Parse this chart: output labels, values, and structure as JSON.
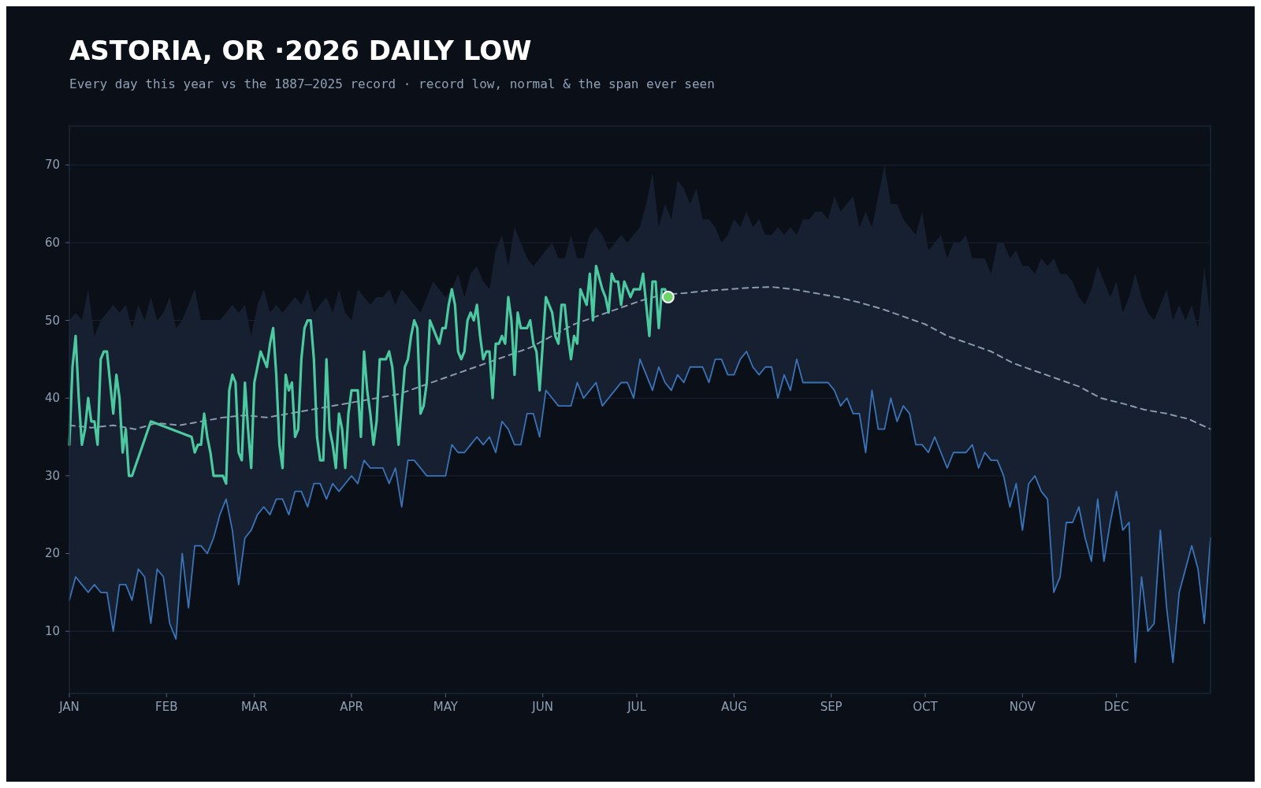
{
  "chart_data": {
    "type": "line",
    "title": "ASTORIA, OR ·2026 DAILY LOW",
    "subtitle": "Every day this year vs the 1887–2025 record · record low, normal & the span ever seen",
    "xlim": [
      "--01-01",
      "--12-31"
    ],
    "ylim": [
      2,
      75
    ],
    "xticks": [
      {
        "value": "--01-01",
        "label": "JAN"
      },
      {
        "value": "--02-01",
        "label": "FEB"
      },
      {
        "value": "--03-01",
        "label": "MAR"
      },
      {
        "value": "--04-01",
        "label": "APR"
      },
      {
        "value": "--05-01",
        "label": "MAY"
      },
      {
        "value": "--06-01",
        "label": "JUN"
      },
      {
        "value": "--07-01",
        "label": "JUL"
      },
      {
        "value": "--08-01",
        "label": "AUG"
      },
      {
        "value": "--09-01",
        "label": "SEP"
      },
      {
        "value": "--10-01",
        "label": "OCT"
      },
      {
        "value": "--11-01",
        "label": "NOV"
      },
      {
        "value": "--12-01",
        "label": "DEC"
      }
    ],
    "yticks": [
      10,
      20,
      30,
      40,
      50,
      60,
      70
    ],
    "grid": "y",
    "series": [
      {
        "type": "area",
        "color": "#172030",
        "x": [
          "--01-01",
          "--01-03",
          "--01-05",
          "--01-07",
          "--01-09",
          "--01-11",
          "--01-13",
          "--01-15",
          "--01-17",
          "--01-19",
          "--01-21",
          "--01-23",
          "--01-25",
          "--01-27",
          "--01-29",
          "--01-31",
          "--02-02",
          "--02-04",
          "--02-06",
          "--02-08",
          "--02-10",
          "--02-12",
          "--02-14",
          "--02-16",
          "--02-18",
          "--02-20",
          "--02-22",
          "--02-24",
          "--02-26",
          "--02-28",
          "--03-02",
          "--03-04",
          "--03-06",
          "--03-08",
          "--03-10",
          "--03-12",
          "--03-14",
          "--03-16",
          "--03-18",
          "--03-20",
          "--03-22",
          "--03-24",
          "--03-26",
          "--03-28",
          "--03-30",
          "--04-01",
          "--04-03",
          "--04-05",
          "--04-07",
          "--04-09",
          "--04-11",
          "--04-13",
          "--04-15",
          "--04-17",
          "--04-19",
          "--04-21",
          "--04-23",
          "--04-25",
          "--04-27",
          "--04-29",
          "--05-01",
          "--05-03",
          "--05-05",
          "--05-07",
          "--05-09",
          "--05-11",
          "--05-13",
          "--05-15",
          "--05-17",
          "--05-19",
          "--05-21",
          "--05-23",
          "--05-25",
          "--05-27",
          "--05-29",
          "--05-31",
          "--06-02",
          "--06-04",
          "--06-06",
          "--06-08",
          "--06-10",
          "--06-12",
          "--06-14",
          "--06-16",
          "--06-18",
          "--06-20",
          "--06-22",
          "--06-24",
          "--06-26",
          "--06-28",
          "--06-30",
          "--07-02",
          "--07-04",
          "--07-06",
          "--07-08",
          "--07-10",
          "--07-12",
          "--07-14",
          "--07-16",
          "--07-18",
          "--07-20",
          "--07-22",
          "--07-24",
          "--07-26",
          "--07-28",
          "--07-30",
          "--08-01",
          "--08-03",
          "--08-05",
          "--08-07",
          "--08-09",
          "--08-11",
          "--08-13",
          "--08-15",
          "--08-17",
          "--08-19",
          "--08-21",
          "--08-23",
          "--08-25",
          "--08-27",
          "--08-29",
          "--08-31",
          "--09-02",
          "--09-04",
          "--09-06",
          "--09-08",
          "--09-10",
          "--09-12",
          "--09-14",
          "--09-16",
          "--09-18",
          "--09-20",
          "--09-22",
          "--09-24",
          "--09-26",
          "--09-28",
          "--09-30",
          "--10-02",
          "--10-04",
          "--10-06",
          "--10-08",
          "--10-10",
          "--10-12",
          "--10-14",
          "--10-16",
          "--10-18",
          "--10-20",
          "--10-22",
          "--10-24",
          "--10-26",
          "--10-28",
          "--10-30",
          "--11-01",
          "--11-03",
          "--11-05",
          "--11-07",
          "--11-09",
          "--11-11",
          "--11-13",
          "--11-15",
          "--11-17",
          "--11-19",
          "--11-21",
          "--11-23",
          "--11-25",
          "--11-27",
          "--11-29",
          "--12-01",
          "--12-03",
          "--12-05",
          "--12-07",
          "--12-09",
          "--12-11",
          "--12-13",
          "--12-15",
          "--12-17",
          "--12-19",
          "--12-21",
          "--12-23",
          "--12-25",
          "--12-27",
          "--12-29",
          "--12-31"
        ],
        "values": [
          50,
          51,
          50,
          54,
          48,
          50,
          51,
          52,
          51,
          52,
          49,
          52,
          50,
          53,
          50,
          51,
          53,
          49,
          50,
          52,
          54,
          50,
          50,
          50,
          50,
          51,
          52,
          51,
          52,
          48,
          52,
          54,
          51,
          52,
          51,
          52,
          53,
          52,
          54,
          51,
          52,
          53,
          51,
          54,
          51,
          50,
          54,
          53,
          52,
          53,
          53,
          54,
          52,
          54,
          53,
          52,
          51,
          53,
          55,
          54,
          53,
          54,
          56,
          53,
          56,
          57,
          55,
          54,
          59,
          61,
          57,
          62,
          60,
          58,
          57,
          58,
          59,
          60,
          58,
          58,
          61,
          58,
          58,
          61,
          62,
          61,
          59,
          60,
          61,
          60,
          61,
          62,
          65,
          69,
          62,
          65,
          63,
          68,
          67,
          65,
          67,
          63,
          63,
          62,
          60,
          61,
          63,
          62,
          64,
          62,
          63,
          61,
          61,
          62,
          61,
          62,
          61,
          63,
          63,
          64,
          64,
          63,
          66,
          64,
          65,
          66,
          62,
          64,
          62,
          66,
          70,
          65,
          65,
          63,
          62,
          61,
          64,
          59,
          60,
          61,
          58,
          60,
          60,
          61,
          58,
          58,
          58,
          56,
          60,
          60,
          58,
          59,
          57,
          57,
          56,
          58,
          57,
          58,
          56,
          56,
          55,
          53,
          52,
          54,
          57,
          55,
          53,
          55,
          51,
          53,
          56,
          53,
          51,
          50,
          52,
          54,
          50,
          52,
          50,
          52,
          49,
          57,
          50
        ]
      },
      {
        "color": "#3a74b8",
        "x": [
          "--01-01",
          "--01-03",
          "--01-05",
          "--01-07",
          "--01-09",
          "--01-11",
          "--01-13",
          "--01-15",
          "--01-17",
          "--01-19",
          "--01-21",
          "--01-23",
          "--01-25",
          "--01-27",
          "--01-29",
          "--01-31",
          "--02-02",
          "--02-04",
          "--02-06",
          "--02-08",
          "--02-10",
          "--02-12",
          "--02-14",
          "--02-16",
          "--02-18",
          "--02-20",
          "--02-22",
          "--02-24",
          "--02-26",
          "--02-28",
          "--03-02",
          "--03-04",
          "--03-06",
          "--03-08",
          "--03-10",
          "--03-12",
          "--03-14",
          "--03-16",
          "--03-18",
          "--03-20",
          "--03-22",
          "--03-24",
          "--03-26",
          "--03-28",
          "--03-30",
          "--04-01",
          "--04-03",
          "--04-05",
          "--04-07",
          "--04-09",
          "--04-11",
          "--04-13",
          "--04-15",
          "--04-17",
          "--04-19",
          "--04-21",
          "--04-23",
          "--04-25",
          "--04-27",
          "--04-29",
          "--05-01",
          "--05-03",
          "--05-05",
          "--05-07",
          "--05-09",
          "--05-11",
          "--05-13",
          "--05-15",
          "--05-17",
          "--05-19",
          "--05-21",
          "--05-23",
          "--05-25",
          "--05-27",
          "--05-29",
          "--05-31",
          "--06-02",
          "--06-04",
          "--06-06",
          "--06-08",
          "--06-10",
          "--06-12",
          "--06-14",
          "--06-16",
          "--06-18",
          "--06-20",
          "--06-22",
          "--06-24",
          "--06-26",
          "--06-28",
          "--06-30",
          "--07-02",
          "--07-04",
          "--07-06",
          "--07-08",
          "--07-10",
          "--07-12",
          "--07-14",
          "--07-16",
          "--07-18",
          "--07-20",
          "--07-22",
          "--07-24",
          "--07-26",
          "--07-28",
          "--07-30",
          "--08-01",
          "--08-03",
          "--08-05",
          "--08-07",
          "--08-09",
          "--08-11",
          "--08-13",
          "--08-15",
          "--08-17",
          "--08-19",
          "--08-21",
          "--08-23",
          "--08-25",
          "--08-27",
          "--08-29",
          "--08-31",
          "--09-02",
          "--09-04",
          "--09-06",
          "--09-08",
          "--09-10",
          "--09-12",
          "--09-14",
          "--09-16",
          "--09-18",
          "--09-20",
          "--09-22",
          "--09-24",
          "--09-26",
          "--09-28",
          "--09-30",
          "--10-02",
          "--10-04",
          "--10-06",
          "--10-08",
          "--10-10",
          "--10-12",
          "--10-14",
          "--10-16",
          "--10-18",
          "--10-20",
          "--10-22",
          "--10-24",
          "--10-26",
          "--10-28",
          "--10-30",
          "--11-01",
          "--11-03",
          "--11-05",
          "--11-07",
          "--11-09",
          "--11-11",
          "--11-13",
          "--11-15",
          "--11-17",
          "--11-19",
          "--11-21",
          "--11-23",
          "--11-25",
          "--11-27",
          "--11-29",
          "--12-01",
          "--12-03",
          "--12-05",
          "--12-07",
          "--12-09",
          "--12-11",
          "--12-13",
          "--12-15",
          "--12-17",
          "--12-19",
          "--12-21",
          "--12-23",
          "--12-25",
          "--12-27",
          "--12-29",
          "--12-31"
        ],
        "values": [
          14,
          17,
          16,
          15,
          16,
          15,
          15,
          10,
          16,
          16,
          14,
          18,
          17,
          11,
          18,
          17,
          11,
          9,
          20,
          13,
          21,
          21,
          20,
          22,
          25,
          27,
          23,
          16,
          22,
          23,
          25,
          26,
          25,
          27,
          27,
          25,
          28,
          28,
          26,
          29,
          29,
          27,
          29,
          28,
          29,
          30,
          29,
          32,
          31,
          31,
          31,
          29,
          31,
          26,
          32,
          32,
          31,
          30,
          30,
          30,
          30,
          34,
          33,
          33,
          34,
          35,
          34,
          35,
          33,
          37,
          36,
          34,
          34,
          38,
          38,
          35,
          41,
          40,
          39,
          39,
          39,
          42,
          40,
          41,
          42,
          39,
          40,
          41,
          42,
          42,
          40,
          45,
          43,
          41,
          44,
          42,
          41,
          43,
          42,
          44,
          44,
          44,
          42,
          45,
          45,
          43,
          43,
          45,
          46,
          44,
          43,
          44,
          44,
          40,
          43,
          41,
          45,
          42,
          42,
          42,
          42,
          42,
          41,
          39,
          40,
          38,
          38,
          33,
          41,
          36,
          36,
          40,
          37,
          39,
          38,
          34,
          34,
          33,
          35,
          33,
          31,
          33,
          33,
          33,
          34,
          31,
          33,
          32,
          32,
          30,
          26,
          29,
          23,
          29,
          30,
          28,
          27,
          15,
          17,
          24,
          24,
          26,
          22,
          19,
          27,
          19,
          24,
          28,
          23,
          24,
          6,
          17,
          10,
          11,
          23,
          13,
          6,
          15,
          18,
          21,
          18,
          11,
          22
        ]
      },
      {
        "color": "#8a9bb0",
        "line_style": "dashed",
        "x": [
          "--01-01",
          "--01-08",
          "--01-15",
          "--01-22",
          "--01-29",
          "--02-05",
          "--02-12",
          "--02-19",
          "--02-26",
          "--03-05",
          "--03-12",
          "--03-19",
          "--03-26",
          "--04-02",
          "--04-09",
          "--04-16",
          "--04-23",
          "--04-30",
          "--05-07",
          "--05-14",
          "--05-21",
          "--05-28",
          "--06-04",
          "--06-11",
          "--06-18",
          "--06-25",
          "--07-02",
          "--07-09",
          "--07-16",
          "--07-23",
          "--07-30",
          "--08-06",
          "--08-13",
          "--08-20",
          "--08-27",
          "--09-03",
          "--09-10",
          "--09-17",
          "--09-24",
          "--10-01",
          "--10-08",
          "--10-15",
          "--10-22",
          "--10-29",
          "--11-05",
          "--11-12",
          "--11-19",
          "--11-26",
          "--12-03",
          "--12-10",
          "--12-17",
          "--12-24",
          "--12-31"
        ],
        "values": [
          36.5,
          36.2,
          36.5,
          36,
          36.8,
          36.5,
          37,
          37.5,
          37.8,
          37.5,
          38,
          38.5,
          39,
          39.5,
          40,
          40.5,
          41.5,
          42.5,
          43.5,
          44.5,
          45.5,
          46.5,
          48,
          49.5,
          50.5,
          51.5,
          52.5,
          53.3,
          53.5,
          53.8,
          54,
          54.2,
          54.3,
          54,
          53.5,
          53,
          52.3,
          51.5,
          50.5,
          49.5,
          48,
          47,
          46,
          44.5,
          43.5,
          42.5,
          41.5,
          40,
          39.3,
          38.5,
          38,
          37.3,
          36
        ]
      },
      {
        "color": "#4cc9a0",
        "x": [
          "--01-01",
          "--01-02",
          "--01-03",
          "--01-04",
          "--01-05",
          "--01-06",
          "--01-07",
          "--01-08",
          "--01-09",
          "--01-10",
          "--01-11",
          "--01-12",
          "--01-13",
          "--01-14",
          "--01-15",
          "--01-16",
          "--01-17",
          "--01-18",
          "--01-19",
          "--01-20",
          "--01-21",
          "--01-27",
          "--02-09",
          "--02-10",
          "--02-11",
          "--02-12",
          "--02-13",
          "--02-14",
          "--02-15",
          "--02-16",
          "--02-18",
          "--02-19",
          "--02-20",
          "--02-21",
          "--02-22",
          "--02-23",
          "--02-24",
          "--02-25",
          "--02-26",
          "--02-27",
          "--02-28",
          "--03-01",
          "--03-02",
          "--03-03",
          "--03-04",
          "--03-05",
          "--03-06",
          "--03-07",
          "--03-08",
          "--03-09",
          "--03-10",
          "--03-11",
          "--03-12",
          "--03-13",
          "--03-14",
          "--03-15",
          "--03-16",
          "--03-17",
          "--03-18",
          "--03-19",
          "--03-20",
          "--03-21",
          "--03-22",
          "--03-23",
          "--03-24",
          "--03-25",
          "--03-26",
          "--03-27",
          "--03-28",
          "--03-29",
          "--03-30",
          "--03-31",
          "--04-01",
          "--04-02",
          "--04-03",
          "--04-04",
          "--04-05",
          "--04-06",
          "--04-07",
          "--04-08",
          "--04-09",
          "--04-10",
          "--04-11",
          "--04-12",
          "--04-13",
          "--04-14",
          "--04-15",
          "--04-16",
          "--04-17",
          "--04-18",
          "--04-19",
          "--04-20",
          "--04-21",
          "--04-22",
          "--04-23",
          "--04-24",
          "--04-25",
          "--04-26",
          "--04-27",
          "--04-28",
          "--04-29",
          "--04-30",
          "--05-01",
          "--05-02",
          "--05-03",
          "--05-04",
          "--05-05",
          "--05-06",
          "--05-07",
          "--05-08",
          "--05-09",
          "--05-10",
          "--05-11",
          "--05-12",
          "--05-13",
          "--05-14",
          "--05-15",
          "--05-16",
          "--05-17",
          "--05-18",
          "--05-19",
          "--05-20",
          "--05-21",
          "--05-22",
          "--05-23",
          "--05-24",
          "--05-25",
          "--05-26",
          "--05-27",
          "--05-28",
          "--05-29",
          "--05-30",
          "--05-31",
          "--06-01",
          "--06-02",
          "--06-03",
          "--06-04",
          "--06-05",
          "--06-06",
          "--06-07",
          "--06-08",
          "--06-09",
          "--06-10",
          "--06-11",
          "--06-12",
          "--06-13",
          "--06-14",
          "--06-15",
          "--06-16",
          "--06-17",
          "--06-18",
          "--06-20",
          "--06-21",
          "--06-22",
          "--06-23",
          "--06-24",
          "--06-25",
          "--06-26",
          "--06-27",
          "--06-28",
          "--06-29",
          "--06-30",
          "--07-01",
          "--07-02",
          "--07-03",
          "--07-04",
          "--07-05",
          "--07-06",
          "--07-07",
          "--07-08",
          "--07-09",
          "--07-10",
          "--07-11"
        ],
        "values": [
          34,
          44,
          48,
          40,
          34,
          36,
          40,
          37,
          37,
          34,
          45,
          46,
          46,
          42,
          38,
          43,
          40,
          33,
          36,
          30,
          30,
          37,
          35,
          33,
          34,
          34,
          38,
          35,
          33,
          30,
          30,
          30,
          29,
          41,
          43,
          42,
          33,
          32,
          42,
          36,
          31,
          42,
          44,
          46,
          45,
          44,
          47,
          49,
          43,
          34,
          31,
          43,
          41,
          42,
          35,
          36,
          45,
          49,
          50,
          50,
          45,
          35,
          32,
          32,
          45,
          36,
          34,
          31,
          38,
          36,
          31,
          38,
          41,
          41,
          41,
          35,
          46,
          41,
          38,
          34,
          37,
          45,
          45,
          45,
          46,
          44,
          39,
          34,
          39,
          44,
          45,
          48,
          50,
          49,
          38,
          39,
          42,
          50,
          49,
          48,
          47,
          49,
          49,
          52,
          54,
          52,
          46,
          45,
          46,
          50,
          51,
          50,
          52,
          48,
          45,
          46,
          46,
          40,
          47,
          47,
          48,
          47,
          53,
          50,
          43,
          51,
          49,
          49,
          49,
          50,
          47,
          46,
          41,
          47,
          53,
          52,
          51,
          48,
          47,
          52,
          52,
          48,
          45,
          48,
          47,
          54,
          53,
          52,
          56,
          50,
          57,
          54,
          53,
          51,
          56,
          55,
          55,
          52,
          55,
          54,
          53,
          54,
          54,
          54,
          56,
          52,
          48,
          55,
          55,
          49,
          54,
          54,
          53
        ]
      },
      {
        "type": "scatter",
        "color": "#6fd46a",
        "marker": "circle",
        "x": [
          "--07-11"
        ],
        "values": [
          53
        ]
      }
    ]
  }
}
